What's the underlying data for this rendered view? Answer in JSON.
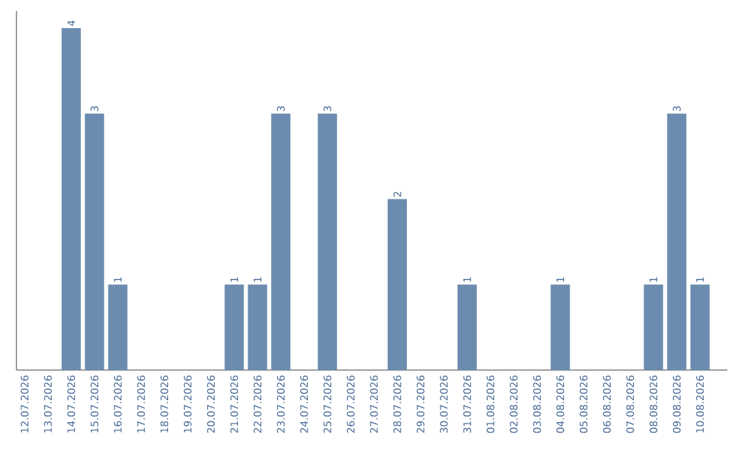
{
  "chart_data": {
    "type": "bar",
    "categories": [
      "12.07.2026",
      "13.07.2026",
      "14.07.2026",
      "15.07.2026",
      "16.07.2026",
      "17.07.2026",
      "18.07.2026",
      "19.07.2026",
      "20.07.2026",
      "21.07.2026",
      "22.07.2026",
      "23.07.2026",
      "24.07.2026",
      "25.07.2026",
      "26.07.2026",
      "27.07.2026",
      "28.07.2026",
      "29.07.2026",
      "30.07.2026",
      "31.07.2026",
      "01.08.2026",
      "02.08.2026",
      "03.08.2026",
      "04.08.2026",
      "05.08.2026",
      "06.08.2026",
      "07.08.2026",
      "08.08.2026",
      "09.08.2026",
      "10.08.2026"
    ],
    "values": [
      0,
      0,
      4,
      3,
      1,
      0,
      0,
      0,
      0,
      1,
      1,
      3,
      0,
      3,
      0,
      0,
      2,
      0,
      0,
      1,
      0,
      0,
      0,
      1,
      0,
      0,
      0,
      1,
      3,
      1
    ],
    "value_labels": [
      null,
      null,
      "4",
      "3",
      "1",
      null,
      null,
      null,
      null,
      "1",
      "1",
      "3",
      null,
      "3",
      null,
      null,
      "2",
      null,
      null,
      "1",
      null,
      null,
      null,
      "1",
      null,
      null,
      null,
      "1",
      "3",
      "1"
    ],
    "color": "#6b8cae",
    "ylim": [
      0,
      4.2
    ],
    "tick_labels": "x"
  }
}
